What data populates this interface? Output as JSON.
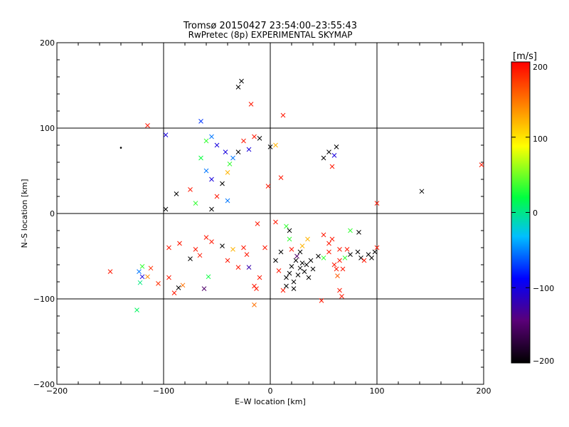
{
  "chart_data": {
    "type": "scatter",
    "title": "Tromsø 20150427 23:54:00–23:55:43",
    "subtitle": "RwPretec (8p) EXPERIMENTAL SKYMAP",
    "xlabel": "E–W location [km]",
    "ylabel": "N–S location [km]",
    "xlim": [
      -200,
      200
    ],
    "ylim": [
      -200,
      200
    ],
    "xticks": [
      -200,
      -100,
      0,
      100,
      200
    ],
    "yticks": [
      -200,
      -100,
      0,
      100,
      200
    ],
    "xtick_labels": [
      "−200",
      "−100",
      "0",
      "100",
      "200"
    ],
    "ytick_labels": [
      "200",
      "100",
      "0",
      "−100",
      "−200"
    ],
    "grid": true,
    "colorbar": {
      "label": "[m/s]",
      "min": -200,
      "max": 200,
      "ticks": [
        200,
        100,
        0,
        -100,
        -200
      ],
      "tick_labels": [
        "200",
        "100",
        "0",
        "−100",
        "−200"
      ],
      "colormap": [
        "#000000",
        "#5a0078",
        "#0000ff",
        "#00bfff",
        "#00ff40",
        "#ffff00",
        "#ff8000",
        "#ff0000"
      ]
    },
    "points": [
      {
        "x": -27,
        "y": 155,
        "v": -200,
        "m": "x"
      },
      {
        "x": -30,
        "y": 148,
        "v": -200,
        "m": "x"
      },
      {
        "x": -115,
        "y": 103,
        "v": 190,
        "m": "x"
      },
      {
        "x": -98,
        "y": 92,
        "v": -100,
        "m": "x"
      },
      {
        "x": -140,
        "y": 77,
        "v": -200,
        "m": "."
      },
      {
        "x": -88,
        "y": 23,
        "v": -200,
        "m": "x"
      },
      {
        "x": -98,
        "y": 5,
        "v": -200,
        "m": "x"
      },
      {
        "x": -75,
        "y": 28,
        "v": 190,
        "m": "x"
      },
      {
        "x": -150,
        "y": -68,
        "v": 190,
        "m": "x"
      },
      {
        "x": -120,
        "y": -62,
        "v": 40,
        "m": "x"
      },
      {
        "x": -123,
        "y": -68,
        "v": -50,
        "m": "x"
      },
      {
        "x": -120,
        "y": -74,
        "v": -100,
        "m": "x"
      },
      {
        "x": -115,
        "y": -74,
        "v": 140,
        "m": "x"
      },
      {
        "x": -122,
        "y": -81,
        "v": 10,
        "m": "x"
      },
      {
        "x": -125,
        "y": -113,
        "v": 20,
        "m": "x"
      },
      {
        "x": -112,
        "y": -64,
        "v": 180,
        "m": "x"
      },
      {
        "x": -105,
        "y": -82,
        "v": 180,
        "m": "x"
      },
      {
        "x": -95,
        "y": -75,
        "v": 190,
        "m": "x"
      },
      {
        "x": -90,
        "y": -93,
        "v": 190,
        "m": "x"
      },
      {
        "x": -86,
        "y": -87,
        "v": -200,
        "m": "x"
      },
      {
        "x": -82,
        "y": -84,
        "v": 150,
        "m": "x"
      },
      {
        "x": -62,
        "y": -88,
        "v": -150,
        "m": "x"
      },
      {
        "x": -58,
        "y": -74,
        "v": 30,
        "m": "x"
      },
      {
        "x": -75,
        "y": -53,
        "v": -200,
        "m": "x"
      },
      {
        "x": -66,
        "y": -49,
        "v": 190,
        "m": "x"
      },
      {
        "x": -95,
        "y": -40,
        "v": 190,
        "m": "x"
      },
      {
        "x": -55,
        "y": -33,
        "v": 190,
        "m": "x"
      },
      {
        "x": -45,
        "y": -38,
        "v": -200,
        "m": "x"
      },
      {
        "x": -40,
        "y": -55,
        "v": 190,
        "m": "x"
      },
      {
        "x": -30,
        "y": -63,
        "v": 190,
        "m": "x"
      },
      {
        "x": -22,
        "y": -48,
        "v": 190,
        "m": "x"
      },
      {
        "x": -20,
        "y": -63,
        "v": -120,
        "m": "x"
      },
      {
        "x": -15,
        "y": -85,
        "v": 190,
        "m": "x"
      },
      {
        "x": -13,
        "y": -88,
        "v": 190,
        "m": "x"
      },
      {
        "x": -10,
        "y": -75,
        "v": 190,
        "m": "x"
      },
      {
        "x": -15,
        "y": -107,
        "v": 150,
        "m": "x"
      },
      {
        "x": -5,
        "y": -40,
        "v": 190,
        "m": "x"
      },
      {
        "x": 8,
        "y": -67,
        "v": 190,
        "m": "x"
      },
      {
        "x": 12,
        "y": -90,
        "v": 190,
        "m": "x"
      },
      {
        "x": 15,
        "y": -75,
        "v": -200,
        "m": "x"
      },
      {
        "x": 18,
        "y": -70,
        "v": -200,
        "m": "x"
      },
      {
        "x": 20,
        "y": -62,
        "v": -200,
        "m": "x"
      },
      {
        "x": 22,
        "y": -80,
        "v": -200,
        "m": "x"
      },
      {
        "x": 24,
        "y": -55,
        "v": -200,
        "m": "x"
      },
      {
        "x": 26,
        "y": -72,
        "v": -200,
        "m": "x"
      },
      {
        "x": 28,
        "y": -64,
        "v": -200,
        "m": "x"
      },
      {
        "x": 30,
        "y": -58,
        "v": -200,
        "m": "x"
      },
      {
        "x": 32,
        "y": -68,
        "v": -200,
        "m": "x"
      },
      {
        "x": 34,
        "y": -60,
        "v": -200,
        "m": "x"
      },
      {
        "x": 36,
        "y": -75,
        "v": -200,
        "m": "x"
      },
      {
        "x": 38,
        "y": -55,
        "v": -200,
        "m": "x"
      },
      {
        "x": 25,
        "y": -50,
        "v": -150,
        "m": "x"
      },
      {
        "x": 28,
        "y": -45,
        "v": -200,
        "m": "x"
      },
      {
        "x": 30,
        "y": -38,
        "v": 120,
        "m": "x"
      },
      {
        "x": 10,
        "y": -45,
        "v": -200,
        "m": "x"
      },
      {
        "x": 5,
        "y": -55,
        "v": -200,
        "m": "x"
      },
      {
        "x": 15,
        "y": -85,
        "v": -200,
        "m": "x"
      },
      {
        "x": 22,
        "y": -88,
        "v": -200,
        "m": "x"
      },
      {
        "x": 40,
        "y": -65,
        "v": -200,
        "m": "x"
      },
      {
        "x": 45,
        "y": -50,
        "v": -200,
        "m": "x"
      },
      {
        "x": 50,
        "y": -52,
        "v": 40,
        "m": "x"
      },
      {
        "x": 55,
        "y": -45,
        "v": 190,
        "m": "x"
      },
      {
        "x": 58,
        "y": -30,
        "v": 190,
        "m": "x"
      },
      {
        "x": 55,
        "y": -35,
        "v": 190,
        "m": "x"
      },
      {
        "x": 60,
        "y": -60,
        "v": 190,
        "m": "x"
      },
      {
        "x": 62,
        "y": -65,
        "v": 190,
        "m": "x"
      },
      {
        "x": 65,
        "y": -55,
        "v": 190,
        "m": "x"
      },
      {
        "x": 65,
        "y": -42,
        "v": 190,
        "m": "x"
      },
      {
        "x": 68,
        "y": -65,
        "v": 190,
        "m": "x"
      },
      {
        "x": 70,
        "y": -52,
        "v": 40,
        "m": "x"
      },
      {
        "x": 72,
        "y": -42,
        "v": 190,
        "m": "x"
      },
      {
        "x": 75,
        "y": -48,
        "v": -200,
        "m": "x"
      },
      {
        "x": 82,
        "y": -45,
        "v": -200,
        "m": "x"
      },
      {
        "x": 85,
        "y": -52,
        "v": -200,
        "m": "x"
      },
      {
        "x": 88,
        "y": -55,
        "v": 190,
        "m": "x"
      },
      {
        "x": 92,
        "y": -48,
        "v": -200,
        "m": "x"
      },
      {
        "x": 95,
        "y": -52,
        "v": -200,
        "m": "x"
      },
      {
        "x": 98,
        "y": -45,
        "v": -200,
        "m": "x"
      },
      {
        "x": 100,
        "y": -40,
        "v": 190,
        "m": "x"
      },
      {
        "x": 65,
        "y": -90,
        "v": 190,
        "m": "x"
      },
      {
        "x": 67,
        "y": -97,
        "v": 190,
        "m": "x"
      },
      {
        "x": 48,
        "y": -102,
        "v": 190,
        "m": "x"
      },
      {
        "x": 63,
        "y": -73,
        "v": 160,
        "m": "x"
      },
      {
        "x": 75,
        "y": -20,
        "v": 40,
        "m": "x"
      },
      {
        "x": 83,
        "y": -22,
        "v": -200,
        "m": "x"
      },
      {
        "x": 50,
        "y": -25,
        "v": 190,
        "m": "x"
      },
      {
        "x": 5,
        "y": -10,
        "v": 190,
        "m": "x"
      },
      {
        "x": 15,
        "y": -15,
        "v": 40,
        "m": "x"
      },
      {
        "x": 18,
        "y": -20,
        "v": -200,
        "m": "x"
      },
      {
        "x": -55,
        "y": 5,
        "v": -200,
        "m": "x"
      },
      {
        "x": -40,
        "y": 15,
        "v": -50,
        "m": "x"
      },
      {
        "x": -45,
        "y": 35,
        "v": -200,
        "m": "x"
      },
      {
        "x": -40,
        "y": 48,
        "v": 120,
        "m": "x"
      },
      {
        "x": -38,
        "y": 58,
        "v": 40,
        "m": "x"
      },
      {
        "x": -35,
        "y": 65,
        "v": -50,
        "m": "x"
      },
      {
        "x": -42,
        "y": 72,
        "v": -100,
        "m": "x"
      },
      {
        "x": -50,
        "y": 80,
        "v": -100,
        "m": "x"
      },
      {
        "x": -55,
        "y": 90,
        "v": -50,
        "m": "x"
      },
      {
        "x": -60,
        "y": 85,
        "v": 40,
        "m": "x"
      },
      {
        "x": -65,
        "y": 108,
        "v": -70,
        "m": "x"
      },
      {
        "x": -18,
        "y": 128,
        "v": 190,
        "m": "x"
      },
      {
        "x": -25,
        "y": 85,
        "v": 190,
        "m": "x"
      },
      {
        "x": -30,
        "y": 72,
        "v": -200,
        "m": "x"
      },
      {
        "x": -20,
        "y": 75,
        "v": -100,
        "m": "x"
      },
      {
        "x": -15,
        "y": 90,
        "v": 190,
        "m": "x"
      },
      {
        "x": -10,
        "y": 88,
        "v": -200,
        "m": "x"
      },
      {
        "x": 0,
        "y": 78,
        "v": -200,
        "m": "x"
      },
      {
        "x": 5,
        "y": 80,
        "v": 120,
        "m": "x"
      },
      {
        "x": 12,
        "y": 115,
        "v": 190,
        "m": "x"
      },
      {
        "x": 10,
        "y": 42,
        "v": 190,
        "m": "x"
      },
      {
        "x": -2,
        "y": 32,
        "v": 190,
        "m": "x"
      },
      {
        "x": 100,
        "y": 12,
        "v": 190,
        "m": "x"
      },
      {
        "x": 142,
        "y": 26,
        "v": -200,
        "m": "x"
      },
      {
        "x": 198,
        "y": 57,
        "v": 190,
        "m": "x"
      },
      {
        "x": 50,
        "y": 65,
        "v": -200,
        "m": "x"
      },
      {
        "x": 55,
        "y": 72,
        "v": -200,
        "m": "x"
      },
      {
        "x": 60,
        "y": 68,
        "v": -100,
        "m": "x"
      },
      {
        "x": 62,
        "y": 78,
        "v": -200,
        "m": "x"
      },
      {
        "x": 58,
        "y": 55,
        "v": 190,
        "m": "x"
      },
      {
        "x": -65,
        "y": 65,
        "v": 30,
        "m": "x"
      },
      {
        "x": -60,
        "y": 50,
        "v": -50,
        "m": "x"
      },
      {
        "x": -55,
        "y": 40,
        "v": -100,
        "m": "x"
      },
      {
        "x": -50,
        "y": 20,
        "v": 190,
        "m": "x"
      },
      {
        "x": -70,
        "y": 12,
        "v": 40,
        "m": "x"
      },
      {
        "x": -85,
        "y": -35,
        "v": 190,
        "m": "x"
      },
      {
        "x": -70,
        "y": -42,
        "v": 190,
        "m": "x"
      },
      {
        "x": -60,
        "y": -28,
        "v": 190,
        "m": "x"
      },
      {
        "x": -35,
        "y": -42,
        "v": 120,
        "m": "x"
      },
      {
        "x": -25,
        "y": -40,
        "v": 190,
        "m": "x"
      },
      {
        "x": -12,
        "y": -12,
        "v": 190,
        "m": "x"
      },
      {
        "x": 18,
        "y": -30,
        "v": 40,
        "m": "x"
      },
      {
        "x": 20,
        "y": -42,
        "v": 190,
        "m": "x"
      },
      {
        "x": 35,
        "y": -30,
        "v": 120,
        "m": "x"
      }
    ]
  }
}
